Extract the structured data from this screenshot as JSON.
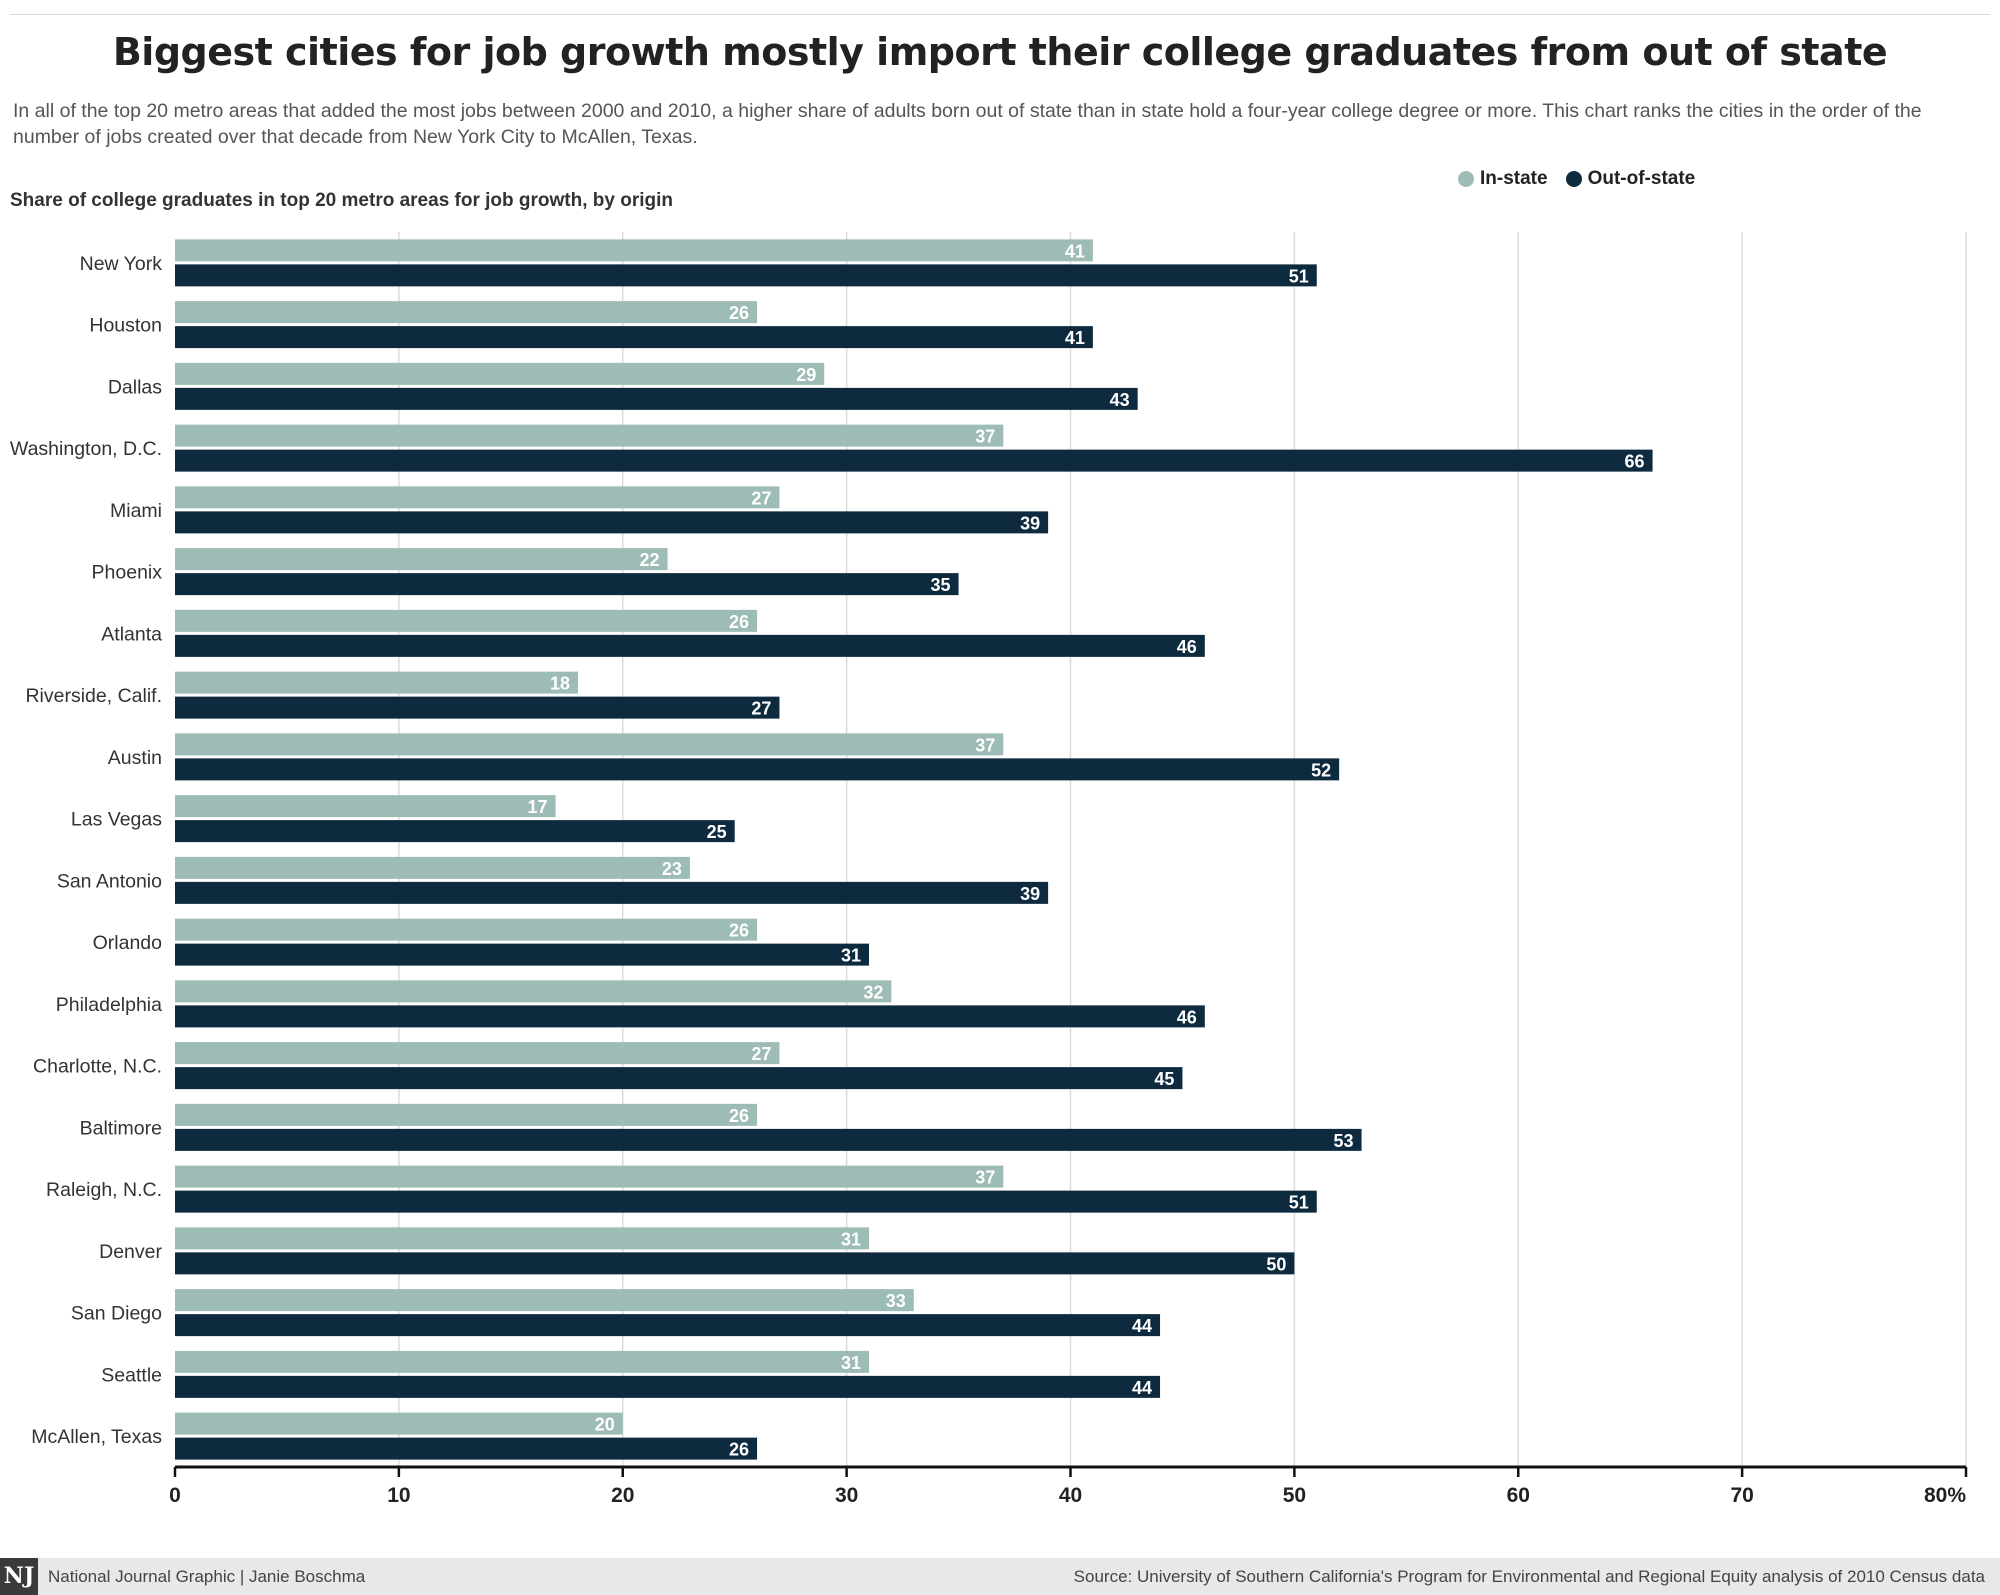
{
  "title": "Biggest cities for job growth mostly import their college graduates from out of state",
  "subtitle": "In all of the top 20 metro areas that added the most jobs between 2000 and 2010, a higher share of adults born out of state than in state hold a four-year college degree or more. This chart ranks the cities in the order of the number of jobs created over that decade from New York City to McAllen, Texas.",
  "chart_heading": "Share of college graduates in top 20 metro areas for job growth, by origin",
  "legend": [
    {
      "label": "In-state",
      "color": "#9dbcb5"
    },
    {
      "label": "Out-of-state",
      "color": "#0e2a3f"
    }
  ],
  "footer": {
    "logo": "NJ",
    "credit": "National Journal Graphic  |  Janie Boschma",
    "source": "Source: University of Southern California's Program for Environmental and Regional Equity analysis of 2010 Census data"
  },
  "chart_data": {
    "type": "bar",
    "orientation": "horizontal",
    "categories": [
      "New York",
      "Houston",
      "Dallas",
      "Washington, D.C.",
      "Miami",
      "Phoenix",
      "Atlanta",
      "Riverside, Calif.",
      "Austin",
      "Las Vegas",
      "San Antonio",
      "Orlando",
      "Philadelphia",
      "Charlotte, N.C.",
      "Baltimore",
      "Raleigh, N.C.",
      "Denver",
      "San Diego",
      "Seattle",
      "McAllen, Texas"
    ],
    "series": [
      {
        "name": "In-state",
        "color": "#9dbcb5",
        "values": [
          41,
          26,
          29,
          37,
          27,
          22,
          26,
          18,
          37,
          17,
          23,
          26,
          32,
          27,
          26,
          37,
          31,
          33,
          31,
          20
        ]
      },
      {
        "name": "Out-of-state",
        "color": "#0e2a3f",
        "values": [
          51,
          41,
          43,
          66,
          39,
          35,
          46,
          27,
          52,
          25,
          39,
          31,
          46,
          45,
          53,
          51,
          50,
          44,
          44,
          26
        ]
      }
    ],
    "xlim": [
      0,
      80
    ],
    "xticks": [
      0,
      10,
      20,
      30,
      40,
      50,
      60,
      70,
      80
    ],
    "xtick_labels": [
      "0",
      "10",
      "20",
      "30",
      "40",
      "50",
      "60",
      "70",
      "80%"
    ],
    "grid": true,
    "legend_position": "top-right"
  }
}
